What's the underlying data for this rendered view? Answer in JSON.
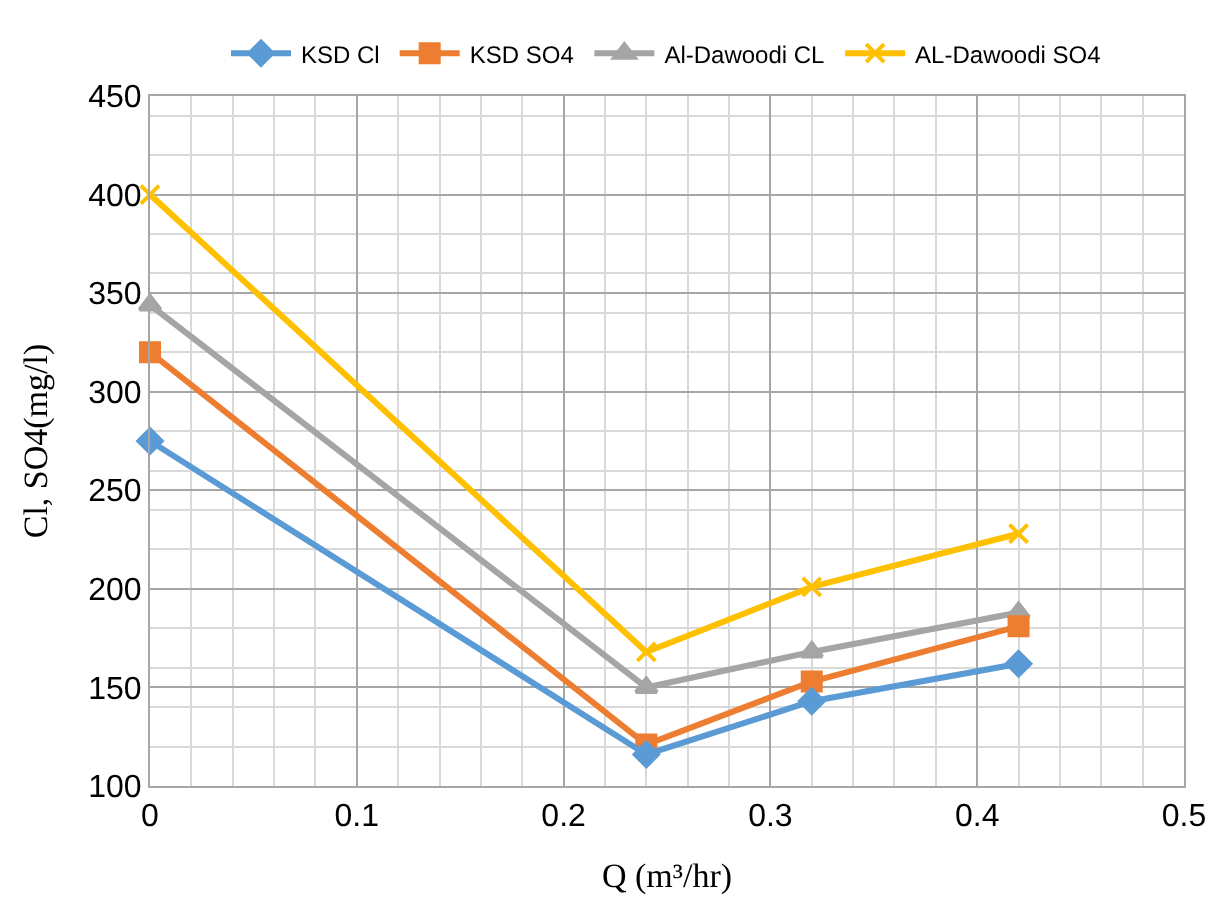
{
  "chart_data": {
    "type": "line",
    "xlabel": "Q (m³/hr)",
    "ylabel": "Cl, SO4(mg/l)",
    "x": [
      0,
      0.24,
      0.32,
      0.42
    ],
    "series": [
      {
        "name": "KSD Cl",
        "color": "#5b9bd5",
        "marker": "diamond",
        "values": [
          275,
          116,
          143,
          162
        ]
      },
      {
        "name": "KSD SO4",
        "color": "#ed7d31",
        "marker": "square",
        "values": [
          320,
          121,
          153,
          181
        ]
      },
      {
        "name": "Al-Dawoodi CL",
        "color": "#a5a5a5",
        "marker": "triangle",
        "values": [
          344,
          150,
          168,
          188
        ]
      },
      {
        "name": "AL-Dawoodi SO4",
        "color": "#ffc000",
        "marker": "cross",
        "values": [
          400,
          168,
          201,
          228
        ]
      }
    ],
    "xlim": [
      0,
      0.5
    ],
    "xticks": [
      0,
      0.1,
      0.2,
      0.3,
      0.4,
      0.5
    ],
    "ylim": [
      100,
      450
    ],
    "yticks": [
      100,
      150,
      200,
      250,
      300,
      350,
      400,
      450
    ],
    "grid": true,
    "legend": "top",
    "line_style": "solid"
  }
}
